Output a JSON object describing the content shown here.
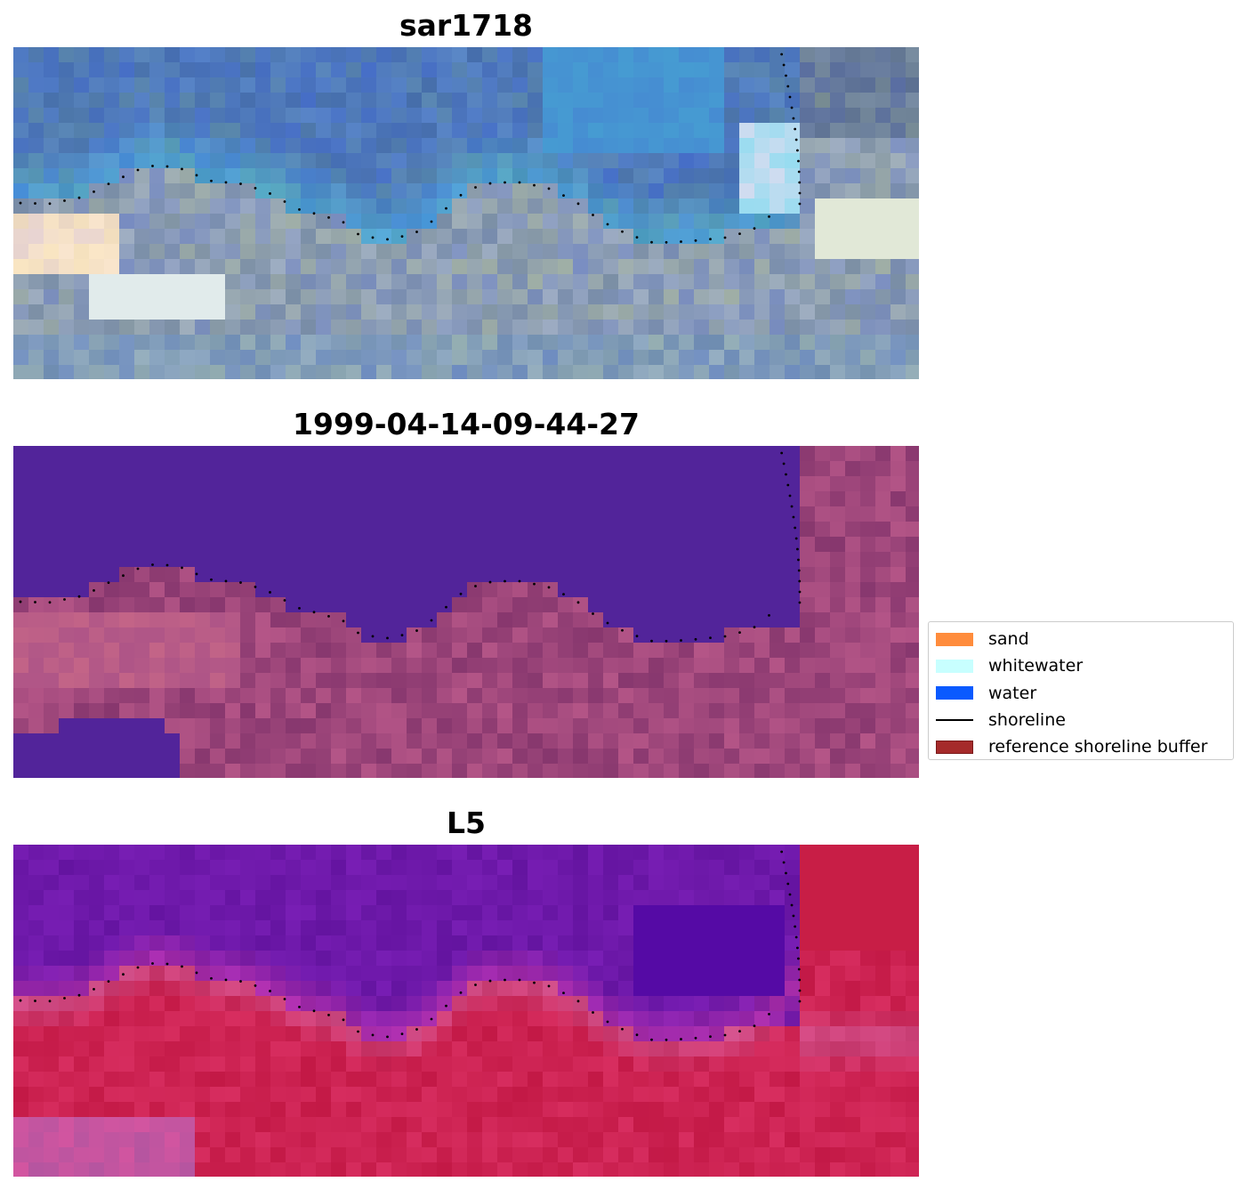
{
  "panels": [
    {
      "title": "sar1718",
      "style": "rgb"
    },
    {
      "title": "1999-04-14-09-44-27",
      "style": "classified"
    },
    {
      "title": "L5",
      "style": "index"
    }
  ],
  "legend": {
    "items": [
      {
        "label": "sand",
        "color": "#ff8c3c",
        "kind": "patch"
      },
      {
        "label": "whitewater",
        "color": "#c8ffff",
        "kind": "patch"
      },
      {
        "label": "water",
        "color": "#0a5aff",
        "kind": "patch"
      },
      {
        "label": "shoreline",
        "color": "#000000",
        "kind": "line"
      },
      {
        "label": "reference shoreline buffer",
        "color": "#a52a2a",
        "kind": "patch"
      }
    ]
  },
  "colors": {
    "rgb_water": "#4a6faf",
    "classified_water": "#52249a",
    "classified_land": "#8a3a72",
    "index_water": "#6a1aa0",
    "index_land": "#c01848",
    "shoreline_dots": "#000000"
  }
}
